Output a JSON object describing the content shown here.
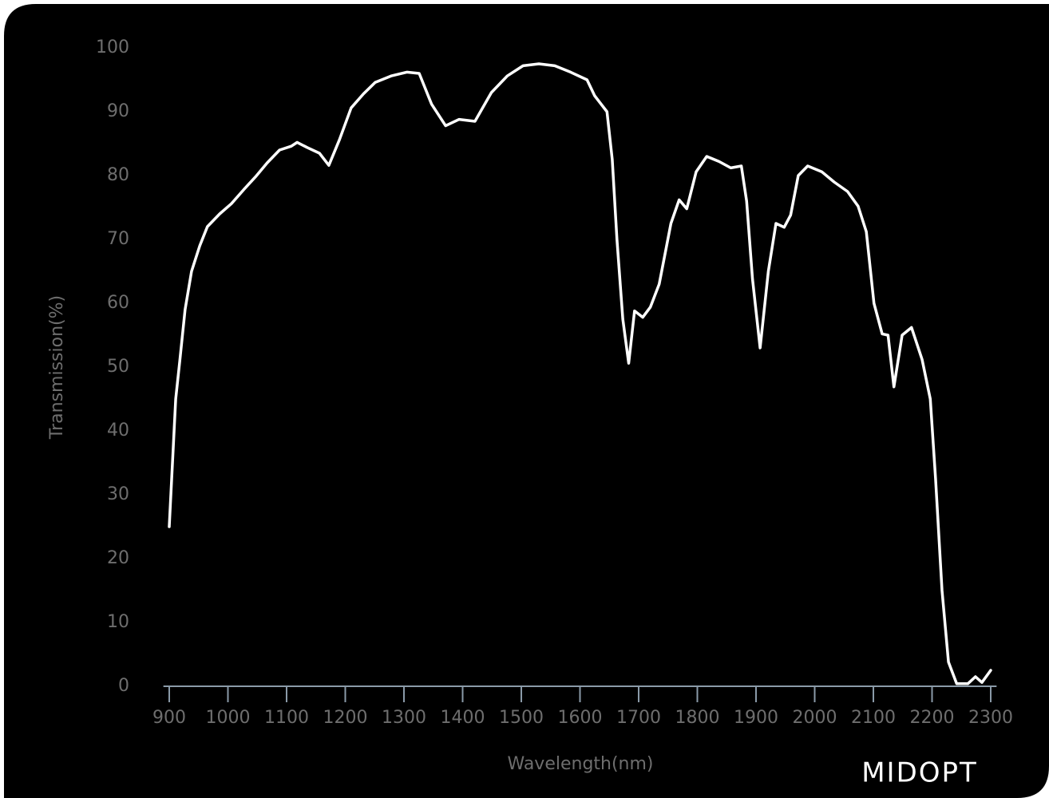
{
  "chart_data": {
    "type": "line",
    "x_label": "Wavelength(nm)",
    "y_label": "Transmission(%)",
    "logo": "MIDOPT",
    "xlim": [
      890,
      2310
    ],
    "ylim": [
      0,
      100
    ],
    "xticks": [
      900,
      1000,
      1100,
      1200,
      1300,
      1400,
      1500,
      1600,
      1700,
      1800,
      1900,
      2000,
      2100,
      2200,
      2300
    ],
    "yticks": [
      0,
      10,
      20,
      30,
      40,
      50,
      60,
      70,
      80,
      90,
      100
    ],
    "grid": false,
    "series": [
      {
        "color": "#ffffff",
        "x": [
          900,
          911,
          918,
          927,
          938,
          952,
          965,
          986,
          1006,
          1027,
          1047,
          1067,
          1088,
          1108,
          1118,
          1135,
          1156,
          1172,
          1190,
          1210,
          1231,
          1251,
          1278,
          1305,
          1326,
          1347,
          1371,
          1394,
          1421,
          1449,
          1476,
          1503,
          1530,
          1557,
          1584,
          1612,
          1625,
          1646,
          1655,
          1663,
          1673,
          1683,
          1693,
          1707,
          1720,
          1735,
          1755,
          1769,
          1782,
          1798,
          1816,
          1837,
          1857,
          1875,
          1884,
          1894,
          1907,
          1921,
          1934,
          1948,
          1959,
          1972,
          1988,
          2012,
          2033,
          2056,
          2074,
          2088,
          2101,
          2115,
          2125,
          2135,
          2149,
          2165,
          2183,
          2197,
          2206,
          2217,
          2228,
          2242,
          2261,
          2274,
          2285,
          2300
        ],
        "values": [
          25,
          45,
          51,
          59,
          65,
          69,
          72,
          74,
          75.6,
          77.8,
          79.8,
          82,
          84,
          84.6,
          85.2,
          84.4,
          83.5,
          81.6,
          85.6,
          90.6,
          92.8,
          94.6,
          95.6,
          96.2,
          96,
          91.2,
          87.8,
          88.8,
          88.5,
          93,
          95.6,
          97.2,
          97.5,
          97.2,
          96.2,
          95,
          92.5,
          90,
          82.5,
          70,
          57.5,
          50.6,
          58.8,
          57.8,
          59.4,
          63,
          72.5,
          76.2,
          74.8,
          80.6,
          83,
          82.2,
          81.2,
          81.5,
          76,
          63.8,
          53,
          65,
          72.5,
          71.9,
          73.8,
          80,
          81.5,
          80.6,
          79,
          77.5,
          75.2,
          71.2,
          60,
          55.2,
          55,
          46.9,
          55,
          56.2,
          51.2,
          45,
          32.5,
          15,
          3.8,
          0.4,
          0.4,
          1.5,
          0.6,
          2.5
        ]
      }
    ]
  }
}
